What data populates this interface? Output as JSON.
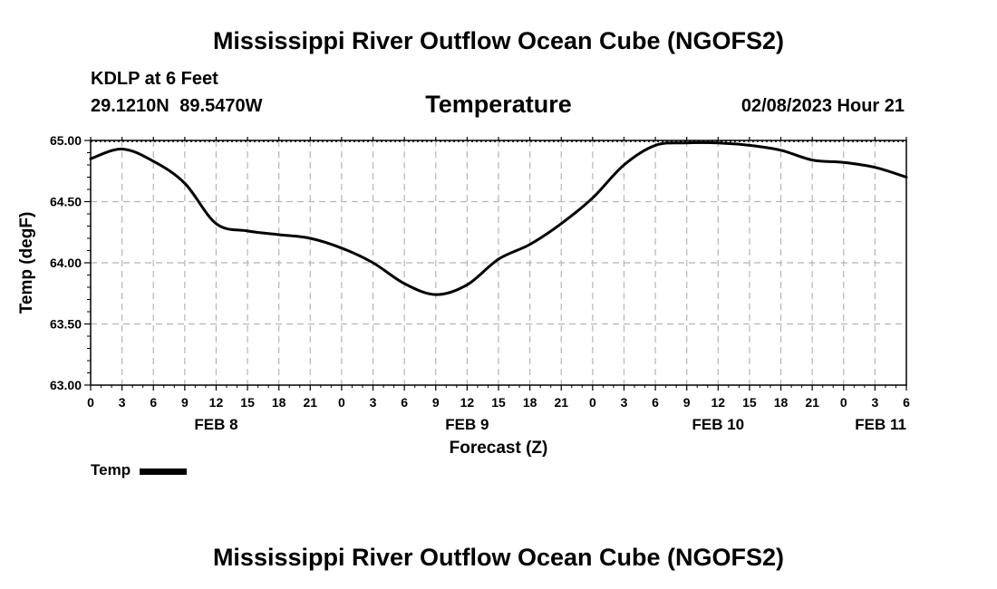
{
  "page_title": "Mississippi River Outflow Ocean Cube (NGOFS2)",
  "station": "KDLP at 6 Feet",
  "coordinates": "29.1210N 89.5470W",
  "parameter": "Temperature",
  "timestamp": "02/08/2023 Hour 21",
  "footer_title": "Mississippi River Outflow Ocean Cube (NGOFS2)",
  "chart_data": {
    "type": "line",
    "title": "Temperature",
    "xlabel": "Forecast (Z)",
    "ylabel": "Temp (degF)",
    "xlim": [
      0,
      78
    ],
    "ylim": [
      63.0,
      65.0
    ],
    "grid": true,
    "legend_position": "bottom-left",
    "y_ticks": [
      "63.00",
      "63.50",
      "64.00",
      "64.50",
      "65.00"
    ],
    "x_tick_labels": [
      "0",
      "3",
      "6",
      "9",
      "12",
      "15",
      "18",
      "21",
      "0",
      "3",
      "6",
      "9",
      "12",
      "15",
      "18",
      "21",
      "0",
      "3",
      "6",
      "9",
      "12",
      "15",
      "18",
      "21",
      "0",
      "3",
      "6"
    ],
    "date_labels": [
      {
        "label": "FEB 8",
        "hour": 12
      },
      {
        "label": "FEB 9",
        "hour": 36
      },
      {
        "label": "FEB 10",
        "hour": 60
      },
      {
        "label": "FEB 11",
        "hour": 78
      }
    ],
    "series": [
      {
        "name": "Temp",
        "color": "#000000",
        "x": [
          0,
          3,
          6,
          9,
          12,
          15,
          18,
          21,
          24,
          27,
          30,
          33,
          36,
          39,
          42,
          45,
          48,
          51,
          54,
          57,
          60,
          63,
          66,
          69,
          72,
          75,
          78
        ],
        "values": [
          64.85,
          64.93,
          64.83,
          64.65,
          64.32,
          64.26,
          64.23,
          64.2,
          64.12,
          64.0,
          63.83,
          63.74,
          63.82,
          64.03,
          64.15,
          64.32,
          64.53,
          64.8,
          64.96,
          64.98,
          64.98,
          64.96,
          64.92,
          64.84,
          64.82,
          64.78,
          64.7
        ]
      }
    ]
  }
}
